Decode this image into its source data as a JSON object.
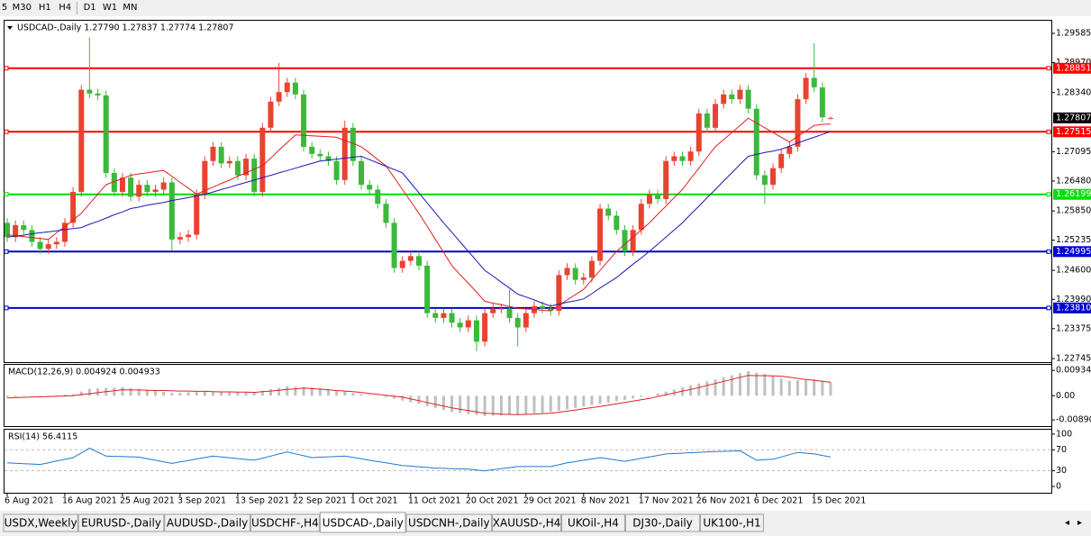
{
  "toolbar": [
    "5",
    "M30",
    "H1",
    "H4",
    "D1",
    "W1",
    "MN"
  ],
  "tabs": [
    "USDX,Weekly",
    "EURUSD-,Daily",
    "AUDUSD-,Daily",
    "USDCHF-,H4",
    "USDCAD-,Daily",
    "USDCNH-,Daily",
    "XAUUSD-,H4",
    "UKOil-,H4",
    "DJ30-,Daily",
    "UK100-,H1"
  ],
  "chart_data": [
    {
      "type": "candlestick",
      "title": "USDCAD-,Daily  1.27790 1.27837 1.27774 1.27807",
      "categories": [
        "6 Aug 2021",
        null,
        null,
        null,
        null,
        null,
        null,
        "16 Aug 2021",
        null,
        null,
        null,
        null,
        null,
        null,
        "25 Aug 2021",
        null,
        null,
        null,
        null,
        null,
        null,
        "3 Sep 2021",
        null,
        null,
        null,
        null,
        null,
        null,
        "13 Sep 2021",
        null,
        null,
        null,
        null,
        null,
        null,
        "22 Sep 2021",
        null,
        null,
        null,
        null,
        null,
        null,
        "1 Oct 2021",
        null,
        null,
        null,
        null,
        null,
        null,
        "11 Oct 2021",
        null,
        null,
        null,
        null,
        null,
        null,
        "20 Oct 2021",
        null,
        null,
        null,
        null,
        null,
        null,
        "29 Oct 2021",
        null,
        null,
        null,
        null,
        null,
        null,
        "8 Nov 2021",
        null,
        null,
        null,
        null,
        null,
        null,
        "17 Nov 2021",
        null,
        null,
        null,
        null,
        null,
        null,
        "26 Nov 2021",
        null,
        null,
        null,
        null,
        null,
        null,
        "6 Dec 2021",
        null,
        null,
        null,
        null,
        null,
        null,
        "15 Dec 2021",
        null,
        null
      ],
      "open": [
        1.256,
        1.253,
        1.2555,
        1.2545,
        1.252,
        1.2505,
        1.2515,
        1.252,
        1.256,
        1.2625,
        1.284,
        1.2832,
        1.2828,
        1.2665,
        1.2625,
        1.2655,
        1.2615,
        1.264,
        1.2625,
        1.263,
        1.2645,
        1.2525,
        1.253,
        1.2535,
        1.262,
        1.269,
        1.272,
        1.2685,
        1.269,
        1.266,
        1.2695,
        1.2625,
        1.276,
        1.2815,
        1.2835,
        1.2855,
        1.283,
        1.272,
        1.2705,
        1.27,
        1.269,
        1.265,
        1.276,
        1.269,
        1.264,
        1.263,
        1.26,
        1.256,
        1.2465,
        1.248,
        1.249,
        1.247,
        1.237,
        1.236,
        1.237,
        1.235,
        1.234,
        1.2355,
        1.231,
        1.237,
        1.238,
        1.238,
        1.236,
        1.234,
        1.237,
        1.2385,
        1.238,
        1.2375,
        1.245,
        1.2465,
        1.244,
        1.2445,
        1.248,
        1.259,
        1.2575,
        1.2545,
        1.25,
        1.2545,
        1.26,
        1.262,
        1.261,
        1.269,
        1.27,
        1.269,
        1.271,
        1.279,
        1.276,
        1.281,
        1.283,
        1.282,
        1.284,
        1.28,
        1.266,
        1.264,
        1.2675,
        1.2705,
        1.272,
        1.282,
        1.2865,
        1.2845,
        1.2779
      ],
      "high": [
        1.257,
        1.2565,
        1.2565,
        1.2555,
        1.253,
        1.2525,
        1.253,
        1.257,
        1.2635,
        1.285,
        1.295,
        1.2842,
        1.2838,
        1.2675,
        1.2665,
        1.2665,
        1.265,
        1.265,
        1.264,
        1.2655,
        1.2655,
        1.254,
        1.2545,
        1.263,
        1.27,
        1.273,
        1.273,
        1.27,
        1.27,
        1.2705,
        1.2705,
        1.277,
        1.2825,
        1.2896,
        1.2865,
        1.2865,
        1.284,
        1.273,
        1.2715,
        1.271,
        1.27,
        1.2775,
        1.277,
        1.27,
        1.265,
        1.264,
        1.261,
        1.257,
        1.249,
        1.25,
        1.25,
        1.248,
        1.238,
        1.238,
        1.238,
        1.236,
        1.2365,
        1.2365,
        1.238,
        1.239,
        1.239,
        1.242,
        1.237,
        1.238,
        1.2395,
        1.2395,
        1.239,
        1.246,
        1.2475,
        1.2475,
        1.2455,
        1.249,
        1.26,
        1.26,
        1.2585,
        1.2555,
        1.2555,
        1.261,
        1.263,
        1.263,
        1.27,
        1.271,
        1.271,
        1.272,
        1.28,
        1.28,
        1.282,
        1.284,
        1.284,
        1.285,
        1.285,
        1.281,
        1.267,
        1.2685,
        1.2715,
        1.273,
        1.283,
        1.2875,
        1.2938,
        1.2855,
        1.27837
      ],
      "low": [
        1.252,
        1.252,
        1.2535,
        1.251,
        1.2495,
        1.2495,
        1.2505,
        1.251,
        1.255,
        1.2615,
        1.2822,
        1.2818,
        1.2655,
        1.2615,
        1.2615,
        1.2605,
        1.2605,
        1.2615,
        1.2615,
        1.262,
        1.25,
        1.2515,
        1.252,
        1.2525,
        1.261,
        1.268,
        1.2675,
        1.2675,
        1.265,
        1.265,
        1.2615,
        1.2615,
        1.275,
        1.2805,
        1.2825,
        1.282,
        1.271,
        1.2695,
        1.269,
        1.268,
        1.264,
        1.264,
        1.268,
        1.263,
        1.262,
        1.259,
        1.255,
        1.2455,
        1.2455,
        1.247,
        1.246,
        1.236,
        1.235,
        1.235,
        1.234,
        1.233,
        1.233,
        1.229,
        1.23,
        1.236,
        1.237,
        1.235,
        1.23,
        1.233,
        1.236,
        1.237,
        1.2365,
        1.2365,
        1.244,
        1.243,
        1.243,
        1.2435,
        1.247,
        1.2565,
        1.2535,
        1.249,
        1.249,
        1.2535,
        1.259,
        1.26,
        1.26,
        1.268,
        1.268,
        1.268,
        1.27,
        1.275,
        1.275,
        1.28,
        1.281,
        1.281,
        1.279,
        1.265,
        1.26,
        1.263,
        1.2665,
        1.2695,
        1.271,
        1.281,
        1.2835,
        1.2772,
        1.27774
      ],
      "close": [
        1.253,
        1.2555,
        1.2545,
        1.252,
        1.2505,
        1.2515,
        1.252,
        1.256,
        1.2625,
        1.284,
        1.2832,
        1.2828,
        1.2665,
        1.2625,
        1.2655,
        1.2615,
        1.264,
        1.2625,
        1.263,
        1.2645,
        1.2525,
        1.253,
        1.2535,
        1.262,
        1.269,
        1.272,
        1.2685,
        1.269,
        1.266,
        1.2695,
        1.2625,
        1.276,
        1.2815,
        1.2835,
        1.2855,
        1.283,
        1.272,
        1.2705,
        1.27,
        1.269,
        1.265,
        1.276,
        1.269,
        1.264,
        1.263,
        1.26,
        1.256,
        1.2465,
        1.248,
        1.249,
        1.247,
        1.237,
        1.236,
        1.237,
        1.235,
        1.234,
        1.2355,
        1.231,
        1.237,
        1.238,
        1.238,
        1.236,
        1.234,
        1.237,
        1.2385,
        1.238,
        1.2375,
        1.245,
        1.2465,
        1.244,
        1.2445,
        1.248,
        1.259,
        1.2575,
        1.2545,
        1.25,
        1.2545,
        1.26,
        1.262,
        1.261,
        1.269,
        1.27,
        1.269,
        1.271,
        1.279,
        1.276,
        1.281,
        1.283,
        1.282,
        1.284,
        1.28,
        1.266,
        1.264,
        1.2675,
        1.2705,
        1.272,
        1.282,
        1.2865,
        1.2845,
        1.2782,
        1.27807
      ],
      "up_color": "#e8432f",
      "down_color": "#3cb83c",
      "overlays": [
        {
          "color": "#e02020",
          "values": [
            1.2535,
            1.2533,
            1.2531,
            1.2529,
            1.2527,
            1.2525,
            1.2539,
            1.2552,
            1.2566,
            1.258,
            1.26,
            1.262,
            1.264,
            1.2647,
            1.2653,
            1.266,
            1.2663,
            1.2665,
            1.2668,
            1.267,
            1.2658,
            1.2645,
            1.2633,
            1.262,
            1.2628,
            1.2635,
            1.2643,
            1.265,
            1.2658,
            1.2665,
            1.2673,
            1.268,
            1.2696,
            1.2713,
            1.2729,
            1.2745,
            1.2744,
            1.2743,
            1.2742,
            1.2741,
            1.274,
            1.2733,
            1.2727,
            1.272,
            1.2707,
            1.2693,
            1.268,
            1.2655,
            1.263,
            1.2605,
            1.258,
            1.2553,
            1.2525,
            1.2498,
            1.247,
            1.2451,
            1.2433,
            1.2414,
            1.2395,
            1.2391,
            1.2388,
            1.2384,
            1.238,
            1.2379,
            1.2378,
            1.2376,
            1.2375,
            1.2386,
            1.2398,
            1.2409,
            1.242,
            1.244,
            1.246,
            1.248,
            1.25,
            1.2515,
            1.253,
            1.2545,
            1.256,
            1.2578,
            1.2595,
            1.2613,
            1.263,
            1.2653,
            1.2675,
            1.2698,
            1.272,
            1.2735,
            1.275,
            1.2765,
            1.278,
            1.277,
            1.276,
            1.275,
            1.274,
            1.273,
            1.2742,
            1.2753,
            1.2765,
            1.2767,
            1.2768
          ]
        },
        {
          "color": "#1a1ab8",
          "values": [
            1.253,
            1.2532,
            1.2534,
            1.2537,
            1.2539,
            1.2541,
            1.2543,
            1.2546,
            1.2548,
            1.255,
            1.2557,
            1.2563,
            1.257,
            1.2577,
            1.2583,
            1.259,
            1.2593,
            1.2597,
            1.26,
            1.2603,
            1.2607,
            1.261,
            1.2613,
            1.2617,
            1.262,
            1.2625,
            1.263,
            1.2635,
            1.264,
            1.2645,
            1.265,
            1.2655,
            1.266,
            1.2665,
            1.267,
            1.2675,
            1.268,
            1.2685,
            1.269,
            1.2692,
            1.2694,
            1.2696,
            1.2698,
            1.27,
            1.2693,
            1.2686,
            1.2679,
            1.2672,
            1.2665,
            1.2644,
            1.2623,
            1.2602,
            1.2581,
            1.256,
            1.254,
            1.252,
            1.25,
            1.248,
            1.246,
            1.2448,
            1.2435,
            1.2423,
            1.241,
            1.2404,
            1.2398,
            1.2391,
            1.2385,
            1.2389,
            1.2393,
            1.2396,
            1.24,
            1.2411,
            1.2423,
            1.2434,
            1.2445,
            1.2459,
            1.2473,
            1.2486,
            1.25,
            1.2515,
            1.253,
            1.2545,
            1.256,
            1.2578,
            1.2595,
            1.2613,
            1.263,
            1.2648,
            1.2665,
            1.2683,
            1.27,
            1.2704,
            1.2708,
            1.2711,
            1.2715,
            1.2721,
            1.2728,
            1.2734,
            1.274,
            1.2746,
            1.2752
          ]
        }
      ],
      "levels": [
        {
          "value": 1.28851,
          "color": "#ff0000"
        },
        {
          "value": 1.27515,
          "color": "#ff0000"
        },
        {
          "value": 1.26199,
          "color": "#00e000"
        },
        {
          "value": 1.24995,
          "color": "#0000d0"
        },
        {
          "value": 1.2381,
          "label": "1.23810",
          "color": "#0000d0"
        }
      ],
      "last_price": 1.27807,
      "ylim": [
        1.2267,
        1.2987
      ],
      "yticks": [
        1.29585,
        {
          "value": 1.2897,
          "label": "1.28970"
        },
        {
          "value": 1.2834,
          "label": "1.28340"
        },
        1.27095,
        {
          "value": 1.2648,
          "label": "1.26480"
        },
        {
          "value": 1.2585,
          "label": "1.25850"
        },
        1.25235,
        {
          "value": 1.246,
          "label": "1.24600"
        },
        {
          "value": 1.2399,
          "label": "1.23990"
        },
        1.23375,
        1.22745
      ]
    },
    {
      "type": "macd",
      "title": "MACD(12,26,9) 0.004924 0.004933",
      "histogram": {
        "color": "#c0c0c0",
        "values": [
          -0.0005,
          -0.0004,
          -0.0002,
          -0.0001,
          0.0,
          0.0001,
          0.0002,
          0.0004,
          0.0005,
          0.0015,
          0.0025,
          0.0027,
          0.0029,
          0.003,
          0.0032,
          0.0028,
          0.0025,
          0.0021,
          0.0017,
          0.0014,
          0.001,
          0.0011,
          0.0013,
          0.0014,
          0.0015,
          0.0015,
          0.0014,
          0.0014,
          0.0013,
          0.0013,
          0.0012,
          0.0018,
          0.0024,
          0.0029,
          0.0035,
          0.0033,
          0.0032,
          0.003,
          0.0028,
          0.0024,
          0.0019,
          0.0015,
          0.001,
          0.0006,
          0.0003,
          -0.0001,
          -0.0005,
          -0.0011,
          -0.0018,
          -0.0024,
          -0.003,
          -0.0038,
          -0.0045,
          -0.0053,
          -0.006,
          -0.0064,
          -0.0068,
          -0.0071,
          -0.0075,
          -0.0074,
          -0.0073,
          -0.0071,
          -0.007,
          -0.0068,
          -0.0065,
          -0.0063,
          -0.006,
          -0.0055,
          -0.005,
          -0.0045,
          -0.004,
          -0.0035,
          -0.003,
          -0.0025,
          -0.002,
          -0.0015,
          -0.001,
          -0.0005,
          0.0,
          0.0008,
          0.0015,
          0.0023,
          0.003,
          0.0038,
          0.0045,
          0.0053,
          0.006,
          0.0068,
          0.0075,
          0.0083,
          0.009,
          0.0085,
          0.008,
          0.0072,
          0.0063,
          0.0055,
          0.0057,
          0.0058,
          0.006,
          0.0055,
          0.004924
        ]
      },
      "signal": {
        "color": "#e02020",
        "values": [
          -0.0008,
          -0.0007,
          -0.0006,
          -0.0005,
          -0.0004,
          -0.0003,
          -0.0002,
          -0.0001,
          0.0,
          0.0004,
          0.0007,
          0.0011,
          0.0015,
          0.0018,
          0.0022,
          0.0021,
          0.0021,
          0.002,
          0.0019,
          0.0019,
          0.0018,
          0.0017,
          0.0017,
          0.0016,
          0.0016,
          0.0015,
          0.0014,
          0.0014,
          0.0013,
          0.0013,
          0.0012,
          0.0015,
          0.0017,
          0.002,
          0.0023,
          0.0025,
          0.0028,
          0.0026,
          0.0024,
          0.0022,
          0.0019,
          0.0017,
          0.0015,
          0.0012,
          0.0008,
          0.0005,
          0.0002,
          -0.0002,
          -0.0005,
          -0.0012,
          -0.0018,
          -0.0025,
          -0.0032,
          -0.0038,
          -0.0045,
          -0.005,
          -0.0055,
          -0.006,
          -0.0065,
          -0.0066,
          -0.0068,
          -0.0069,
          -0.007,
          -0.0069,
          -0.0068,
          -0.0066,
          -0.0065,
          -0.0061,
          -0.0057,
          -0.0053,
          -0.0048,
          -0.0044,
          -0.004,
          -0.0035,
          -0.003,
          -0.0025,
          -0.002,
          -0.0015,
          -0.001,
          -0.0003,
          0.0003,
          0.001,
          0.0017,
          0.0023,
          0.003,
          0.0038,
          0.0045,
          0.0053,
          0.006,
          0.0068,
          0.0075,
          0.0074,
          0.0074,
          0.0073,
          0.0072,
          0.0068,
          0.0064,
          0.006,
          0.0057,
          0.0053,
          0.004933
        ]
      },
      "ylim": [
        -0.0112,
        0.0117
      ],
      "yticks": [
        0.009345,
        {
          "value": 0,
          "label": "0.00"
        },
        -0.008902
      ]
    },
    {
      "type": "line",
      "title": "RSI(14) 56.4115",
      "color": "#1f78d0",
      "values": [
        45,
        44.3,
        43.5,
        42.8,
        42,
        45.3,
        48.5,
        51.8,
        55,
        64,
        73,
        65.5,
        58,
        57.5,
        57,
        56.5,
        56,
        53,
        50,
        47,
        44,
        46.8,
        49.6,
        52.4,
        55.2,
        58,
        56.4,
        54.8,
        53.2,
        51.6,
        50,
        54,
        58,
        62,
        66,
        62.3,
        58.7,
        55,
        55.8,
        56.5,
        57.3,
        58,
        55.3,
        52.7,
        50,
        47.5,
        45,
        42.5,
        40,
        38.8,
        37.5,
        36.3,
        35,
        34.5,
        34,
        33.5,
        33,
        31.5,
        30,
        32,
        34,
        36,
        38,
        38,
        38,
        38,
        38,
        41.5,
        45,
        47.5,
        50,
        52.5,
        55,
        52.7,
        50.3,
        48,
        50.8,
        53.6,
        56.4,
        59.2,
        62,
        62.8,
        63.6,
        64.4,
        65.2,
        66,
        66.5,
        67,
        67.5,
        68,
        59,
        50,
        51,
        52,
        56.3,
        60.7,
        65,
        63.5,
        62,
        59.2,
        56.4115
      ],
      "levels": [
        70,
        30
      ],
      "ylim": [
        -12,
        110
      ],
      "yticks": [
        100,
        70,
        30,
        0
      ]
    }
  ]
}
